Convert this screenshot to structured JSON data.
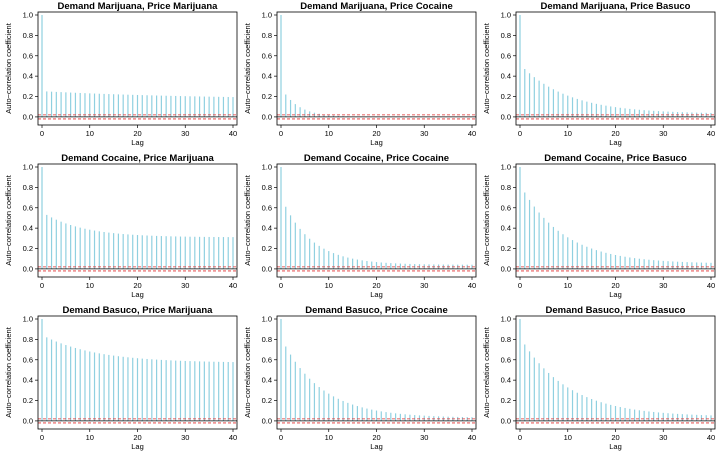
{
  "colors": {
    "bar": "#8fd0e0",
    "zero_line": "#000000",
    "conf_band": "#e03030",
    "frame": "#000000"
  },
  "chart_data": [
    {
      "type": "bar",
      "title": "Demand Marijuana, Price Marijuana",
      "xlabel": "Lag",
      "ylabel": "Auto−correlation coefficient",
      "xlim": [
        0,
        40
      ],
      "ylim": [
        -0.05,
        1.0
      ],
      "xticks": [
        0,
        10,
        20,
        30,
        40
      ],
      "yticks": [
        0.0,
        0.2,
        0.4,
        0.6,
        0.8,
        1.0
      ],
      "conf_band": [
        -0.02,
        0.02
      ],
      "acf_start": 1.0,
      "acf_first": 0.25,
      "acf_tail": 0.17,
      "acf_decay": 0.03
    },
    {
      "type": "bar",
      "title": "Demand Marijuana, Price Cocaine",
      "xlabel": "Lag",
      "ylabel": "Auto−correlation coefficient",
      "xlim": [
        0,
        40
      ],
      "ylim": [
        -0.05,
        1.0
      ],
      "xticks": [
        0,
        10,
        20,
        30,
        40
      ],
      "yticks": [
        0.0,
        0.2,
        0.4,
        0.6,
        0.8,
        1.0
      ],
      "conf_band": [
        -0.02,
        0.02
      ],
      "acf_start": 1.0,
      "acf_first": 0.22,
      "acf_tail": 0.0,
      "acf_decay": 0.28
    },
    {
      "type": "bar",
      "title": "Demand Marijuana, Price Basuco",
      "xlabel": "Lag",
      "ylabel": "Auto−correlation coefficient",
      "xlim": [
        0,
        40
      ],
      "ylim": [
        -0.05,
        1.0
      ],
      "xticks": [
        0,
        10,
        20,
        30,
        40
      ],
      "yticks": [
        0.0,
        0.2,
        0.4,
        0.6,
        0.8,
        1.0
      ],
      "conf_band": [
        -0.02,
        0.02
      ],
      "acf_start": 1.0,
      "acf_first": 0.47,
      "acf_tail": 0.03,
      "acf_decay": 0.1
    },
    {
      "type": "bar",
      "title": "Demand Cocaine, Price Marijuana",
      "xlabel": "Lag",
      "ylabel": "Auto−correlation coefficient",
      "xlim": [
        0,
        40
      ],
      "ylim": [
        -0.05,
        1.0
      ],
      "xticks": [
        0,
        10,
        20,
        30,
        40
      ],
      "yticks": [
        0.0,
        0.2,
        0.4,
        0.6,
        0.8,
        1.0
      ],
      "conf_band": [
        -0.02,
        0.02
      ],
      "acf_start": 1.0,
      "acf_first": 0.53,
      "acf_tail": 0.31,
      "acf_decay": 0.12
    },
    {
      "type": "bar",
      "title": "Demand Cocaine, Price Cocaine",
      "xlabel": "Lag",
      "ylabel": "Auto−correlation coefficient",
      "xlim": [
        0,
        40
      ],
      "ylim": [
        -0.05,
        1.0
      ],
      "xticks": [
        0,
        10,
        20,
        30,
        40
      ],
      "yticks": [
        0.0,
        0.2,
        0.4,
        0.6,
        0.8,
        1.0
      ],
      "conf_band": [
        -0.02,
        0.02
      ],
      "acf_start": 1.0,
      "acf_first": 0.61,
      "acf_tail": 0.04,
      "acf_decay": 0.16
    },
    {
      "type": "bar",
      "title": "Demand Cocaine, Price Basuco",
      "xlabel": "Lag",
      "ylabel": "Auto−correlation coefficient",
      "xlim": [
        0,
        40
      ],
      "ylim": [
        -0.05,
        1.0
      ],
      "xticks": [
        0,
        10,
        20,
        30,
        40
      ],
      "yticks": [
        0.0,
        0.2,
        0.4,
        0.6,
        0.8,
        1.0
      ],
      "conf_band": [
        -0.02,
        0.02
      ],
      "acf_start": 1.0,
      "acf_first": 0.75,
      "acf_tail": 0.05,
      "acf_decay": 0.11
    },
    {
      "type": "bar",
      "title": "Demand Basuco, Price Marijuana",
      "xlabel": "Lag",
      "ylabel": "Auto−correlation coefficient",
      "xlim": [
        0,
        40
      ],
      "ylim": [
        -0.05,
        1.0
      ],
      "xticks": [
        0,
        10,
        20,
        30,
        40
      ],
      "yticks": [
        0.0,
        0.2,
        0.4,
        0.6,
        0.8,
        1.0
      ],
      "conf_band": [
        -0.02,
        0.02
      ],
      "acf_start": 1.0,
      "acf_first": 0.82,
      "acf_tail": 0.57,
      "acf_decay": 0.09
    },
    {
      "type": "bar",
      "title": "Demand Basuco, Price Cocaine",
      "xlabel": "Lag",
      "ylabel": "Auto−correlation coefficient",
      "xlim": [
        0,
        40
      ],
      "ylim": [
        -0.05,
        1.0
      ],
      "xticks": [
        0,
        10,
        20,
        30,
        40
      ],
      "yticks": [
        0.0,
        0.2,
        0.4,
        0.6,
        0.8,
        1.0
      ],
      "conf_band": [
        -0.02,
        0.02
      ],
      "acf_start": 1.0,
      "acf_first": 0.73,
      "acf_tail": 0.03,
      "acf_decay": 0.12
    },
    {
      "type": "bar",
      "title": "Demand Basuco, Price Basuco",
      "xlabel": "Lag",
      "ylabel": "Auto−correlation coefficient",
      "xlim": [
        0,
        40
      ],
      "ylim": [
        -0.05,
        1.0
      ],
      "xticks": [
        0,
        10,
        20,
        30,
        40
      ],
      "yticks": [
        0.0,
        0.2,
        0.4,
        0.6,
        0.8,
        1.0
      ],
      "conf_band": [
        -0.02,
        0.02
      ],
      "acf_start": 1.0,
      "acf_first": 0.75,
      "acf_tail": 0.04,
      "acf_decay": 0.1
    }
  ]
}
